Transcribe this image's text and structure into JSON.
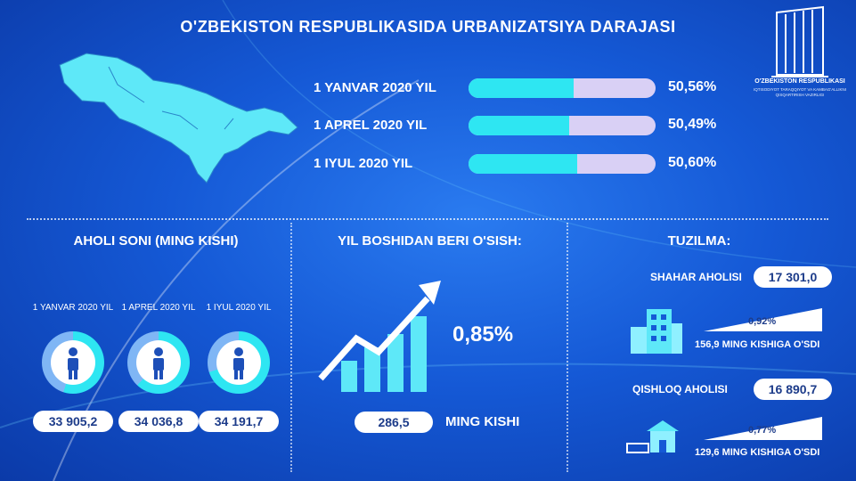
{
  "title": "O'ZBEKISTON RESPUBLIKASIDA URBANIZATSIYA DARAJASI",
  "logo": {
    "name": "O'ZBEKISTON RESPUBLIKASI",
    "subtitle": "IQTISODIYOT TARAQQIYOT VA KAMBAG'ALLIKNI QISQARTIRISH VAZIRLIGI"
  },
  "chart_data": [
    {
      "type": "bar",
      "title": "",
      "categories": [
        "1 YANVAR 2020 YIL",
        "1 APREL 2020 YIL",
        "1 IYUL 2020 YIL"
      ],
      "values": [
        50.56,
        50.49,
        50.6
      ],
      "value_labels": [
        "50,56%",
        "50,49%",
        "50,60%"
      ],
      "ylim": [
        0,
        100
      ],
      "unit": "%"
    },
    {
      "type": "bar",
      "title": "AHOLI SONI (MING KISHI)",
      "categories": [
        "1 YANVAR 2020 YIL",
        "1 APREL 2020 YIL",
        "1 IYUL 2020 YIL"
      ],
      "values": [
        33905.2,
        34036.8,
        34191.7
      ],
      "value_labels": [
        "33 905,2",
        "34 036,8",
        "34 191,7"
      ]
    }
  ],
  "growth": {
    "title": "YIL BOSHIDAN BERI O'SISH:",
    "percent": "0,85%",
    "value": "286,5",
    "unit": "MING KISHI"
  },
  "structure": {
    "title": "TUZILMA:",
    "urban": {
      "label": "SHAHAR AHOLISI",
      "value": "17 301,0",
      "percent": "0,92%",
      "growth": "156,9 MING KISHIGA O'SDI"
    },
    "rural": {
      "label": "QISHLOQ AHOLISI",
      "value": "16 890,7",
      "percent": "0,77%",
      "growth": "129,6 MING KISHIGA O'SDI"
    }
  },
  "colors": {
    "accent": "#2ee6f2",
    "track": "#d9d0f5",
    "background": "#1559d6",
    "pill_text": "#1d3c8a"
  }
}
